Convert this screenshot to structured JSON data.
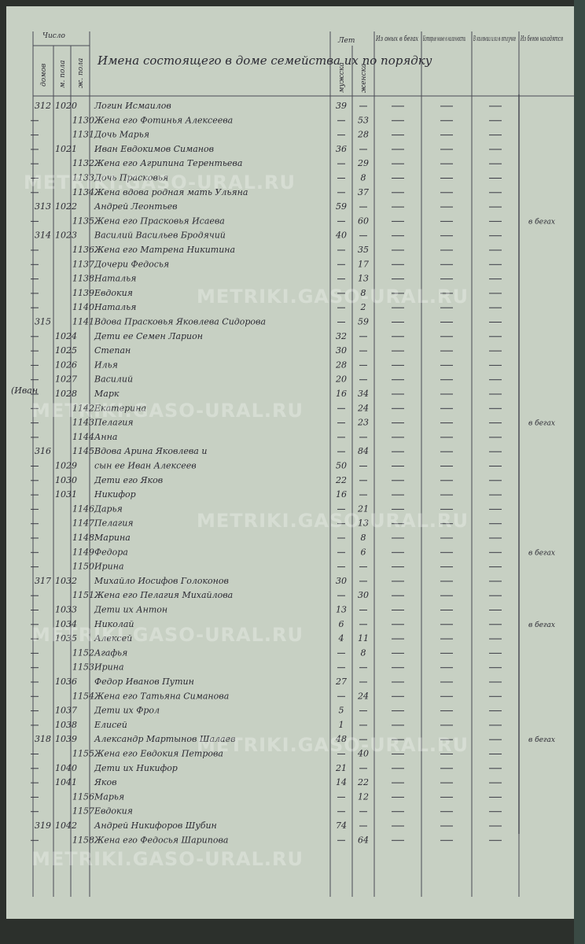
{
  "header": {
    "number_label": "Число",
    "col_houses": "домов",
    "col_male": "м. пола",
    "col_female": "ж. пола",
    "names_title": "Имена состоящего в доме семейства их по порядку",
    "age_label": "Лет",
    "age_male": "мужска",
    "age_female": "женска",
    "col_notes": [
      "Из оных в бегах",
      "Которые ныне в наличности",
      "В колонии или в отлучке",
      "Из бегов находятся"
    ]
  },
  "margin_left": "(Иван",
  "margin_notes": [
    "в бегах",
    "в бегах",
    "в бегах",
    "в бегах",
    "в бегах"
  ],
  "watermark": "METRIKI.GASO-URAL.RU",
  "rows": [
    [
      "312",
      "1020",
      null,
      "Логин Исмаилов",
      "39",
      null
    ],
    [
      null,
      null,
      "1130",
      "Жена его Фотинья Алексеева",
      null,
      "53"
    ],
    [
      null,
      null,
      "1131",
      "Дочь Марья",
      null,
      "28"
    ],
    [
      null,
      "1021",
      null,
      "Иван Евдокимов Симанов",
      "36",
      null
    ],
    [
      null,
      null,
      "1132",
      "Жена его Агрипина Терентьева",
      null,
      "29"
    ],
    [
      null,
      null,
      "1133",
      "Дочь Прасковья",
      null,
      "8"
    ],
    [
      null,
      null,
      "1134",
      "Жена вдова родная мать Ульяна",
      null,
      "37"
    ],
    [
      "313",
      "1022",
      null,
      "Андрей Леонтьев",
      "59",
      null
    ],
    [
      null,
      null,
      "1135",
      "Жена его Прасковья Исаева",
      null,
      "60"
    ],
    [
      "314",
      "1023",
      null,
      "Василий Васильев Бродячий",
      "40",
      null
    ],
    [
      null,
      null,
      "1136",
      "Жена его Матрена Никитина",
      null,
      "35"
    ],
    [
      null,
      null,
      "1137",
      "Дочери Федосья",
      null,
      "17"
    ],
    [
      null,
      null,
      "1138",
      "Наталья",
      null,
      "13"
    ],
    [
      null,
      null,
      "1139",
      "Евдокия",
      null,
      "8"
    ],
    [
      null,
      null,
      "1140",
      "Наталья",
      null,
      "2"
    ],
    [
      "315",
      null,
      "1141",
      "Вдова Прасковья Яковлева Сидорова",
      null,
      "59"
    ],
    [
      null,
      "1024",
      null,
      "Дети ее Семен Ларион",
      "32",
      null
    ],
    [
      null,
      "1025",
      null,
      "Степан",
      "30",
      null
    ],
    [
      null,
      "1026",
      null,
      "Илья",
      "28",
      null
    ],
    [
      null,
      "1027",
      null,
      "Василий",
      "20",
      null
    ],
    [
      null,
      "1028",
      null,
      "Марк",
      "16",
      "34"
    ],
    [
      null,
      null,
      "1142",
      "Екатерина",
      null,
      "24"
    ],
    [
      null,
      null,
      "1143",
      "Пелагия",
      null,
      "23"
    ],
    [
      null,
      null,
      "1144",
      "Анна",
      null,
      null
    ],
    [
      "316",
      null,
      "1145",
      "Вдова Арина Яковлева и",
      null,
      "84"
    ],
    [
      null,
      "1029",
      null,
      "сын ее Иван Алексеев",
      "50",
      null
    ],
    [
      null,
      "1030",
      null,
      "Дети его Яков",
      "22",
      null
    ],
    [
      null,
      "1031",
      null,
      "Никифор",
      "16",
      null
    ],
    [
      null,
      null,
      "1146",
      "Дарья",
      null,
      "21"
    ],
    [
      null,
      null,
      "1147",
      "Пелагия",
      null,
      "13"
    ],
    [
      null,
      null,
      "1148",
      "Марина",
      null,
      "8"
    ],
    [
      null,
      null,
      "1149",
      "Федора",
      null,
      "6"
    ],
    [
      null,
      null,
      "1150",
      "Ирина",
      null,
      null
    ],
    [
      "317",
      "1032",
      null,
      "Михайло Иосифов Голоконов",
      "30",
      null
    ],
    [
      null,
      null,
      "1151",
      "Жена его Пелагия Михайлова",
      null,
      "30"
    ],
    [
      null,
      "1033",
      null,
      "Дети их Антон",
      "13",
      null
    ],
    [
      null,
      "1034",
      null,
      "Николай",
      "6",
      null
    ],
    [
      null,
      "1035",
      null,
      "Алексей",
      "4",
      "11"
    ],
    [
      null,
      null,
      "1152",
      "Агафья",
      null,
      "8"
    ],
    [
      null,
      null,
      "1153",
      "Ирина",
      null,
      null
    ],
    [
      null,
      "1036",
      null,
      "Федор Иванов Путин",
      "27",
      null
    ],
    [
      null,
      null,
      "1154",
      "Жена его Татьяна Симанова",
      null,
      "24"
    ],
    [
      null,
      "1037",
      null,
      "Дети их Фрол",
      "5",
      null
    ],
    [
      null,
      "1038",
      null,
      "Елисей",
      "1",
      null
    ],
    [
      "318",
      "1039",
      null,
      "Александр Мартынов Шалаев",
      "48",
      null
    ],
    [
      null,
      null,
      "1155",
      "Жена его Евдокия Петрова",
      null,
      "40"
    ],
    [
      null,
      "1040",
      null,
      "Дети их Никифор",
      "21",
      null
    ],
    [
      null,
      "1041",
      null,
      "Яков",
      "14",
      "22"
    ],
    [
      null,
      null,
      "1156",
      "Марья",
      null,
      "12"
    ],
    [
      null,
      null,
      "1157",
      "Евдокия",
      null,
      null
    ],
    [
      "319",
      "1042",
      null,
      "Андрей Никифоров Шубин",
      "74",
      null
    ],
    [
      null,
      null,
      "1158",
      "Жена его Федосья Шарипова",
      null,
      "64"
    ]
  ]
}
